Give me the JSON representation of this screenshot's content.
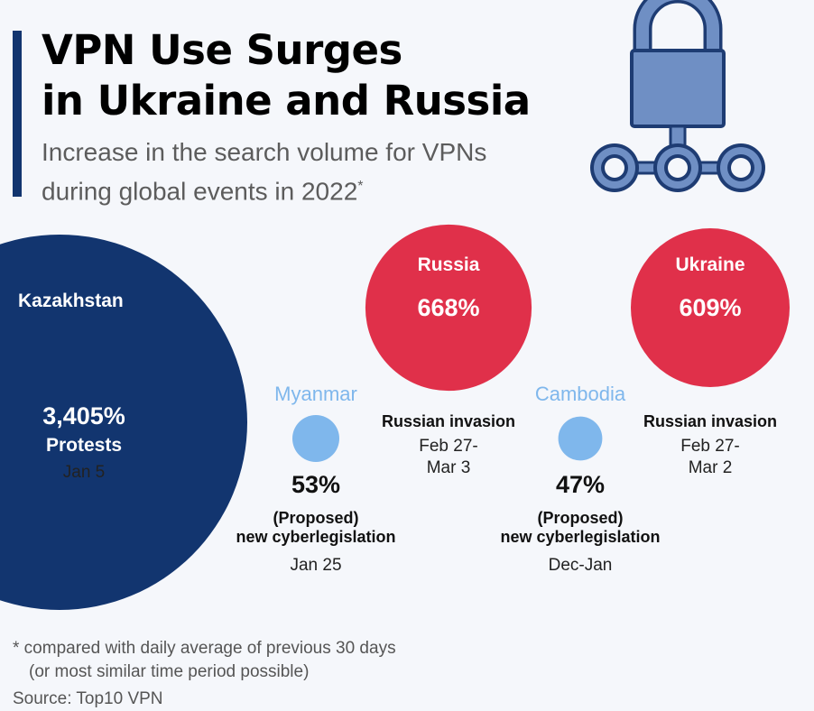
{
  "header": {
    "title_line1": "VPN Use Surges",
    "title_line2": "in Ukraine and Russia",
    "subtitle_line1": "Increase in the search volume for VPNs",
    "subtitle_line2": "during global events in 2022",
    "subtitle_mark": "*"
  },
  "icon": {
    "name": "padlock-network-icon",
    "fill": "#6f8fc4",
    "stroke": "#1e3c73"
  },
  "chart_data": {
    "type": "bubble",
    "unit": "%",
    "series": [
      {
        "name": "Kazakhstan",
        "value": 3405,
        "value_label": "3,405%",
        "event_lines": [
          "Protests"
        ],
        "date": "Jan 5",
        "color": "#12356f"
      },
      {
        "name": "Russia",
        "value": 668,
        "value_label": "668%",
        "event_lines": [
          "Russian invasion"
        ],
        "date_lines": [
          "Feb 27-",
          "Mar 3"
        ],
        "color": "#e0304a"
      },
      {
        "name": "Ukraine",
        "value": 609,
        "value_label": "609%",
        "event_lines": [
          "Russian invasion"
        ],
        "date_lines": [
          "Feb 27-",
          "Mar 2"
        ],
        "color": "#e0304a"
      },
      {
        "name": "Myanmar",
        "value": 53,
        "value_label": "53%",
        "event_lines": [
          "(Proposed)",
          "new cyberlegislation"
        ],
        "date": "Jan 25",
        "color": "#7fb7ec"
      },
      {
        "name": "Cambodia",
        "value": 47,
        "value_label": "47%",
        "event_lines": [
          "(Proposed)",
          "new cyberlegislation"
        ],
        "date": "Dec-Jan",
        "color": "#7fb7ec"
      }
    ]
  },
  "footer": {
    "note_line1": "* compared with daily average of previous 30 days",
    "note_line2": "(or most similar time period possible)",
    "source": "Source: Top10 VPN"
  }
}
